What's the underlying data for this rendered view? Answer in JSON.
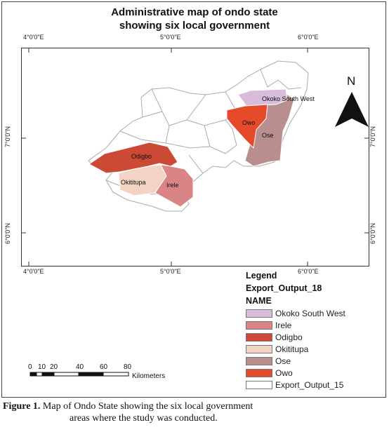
{
  "title_line1": "Administrative map of ondo state",
  "title_line2": "showing six local government",
  "ticks": {
    "top": [
      "4°0'0\"E",
      "5°0'0\"E",
      "6°0'0\"E"
    ],
    "bottom": [
      "4°0'0\"E",
      "5°0'0\"E",
      "6°0'0\"E"
    ],
    "left": [
      "7°0'0\"N",
      "6°0'0\"N"
    ],
    "right": [
      "7°0'0\"N",
      "6°0'0\"N"
    ]
  },
  "north_label": "N",
  "lga_labels": {
    "okoko": "Okoko South West",
    "owo": "Owo",
    "ose": "Ose",
    "odigbo": "Odigbo",
    "okititupa": "Okititupa",
    "irele": "Irele"
  },
  "legend": {
    "title": "Legend",
    "layer": "Export_Output_18",
    "field": "NAME",
    "items": [
      {
        "label": "Okoko South West",
        "color": "#d9bcd9"
      },
      {
        "label": "Irele",
        "color": "#d98585"
      },
      {
        "label": "Odigbo",
        "color": "#cc4a35"
      },
      {
        "label": "Okititupa",
        "color": "#f3d3c4"
      },
      {
        "label": "Ose",
        "color": "#b98e8e"
      },
      {
        "label": "Owo",
        "color": "#e54a2a"
      },
      {
        "label": "Export_Output_15",
        "color": "#ffffff"
      }
    ]
  },
  "scale": {
    "labels": [
      "0",
      "10",
      "20",
      "40",
      "60",
      "80"
    ],
    "unit": "Kilometers"
  },
  "caption": {
    "label": "Figure 1.",
    "line1": "Map of Ondo State showing the six local government",
    "line2": "areas where the study was conducted."
  }
}
